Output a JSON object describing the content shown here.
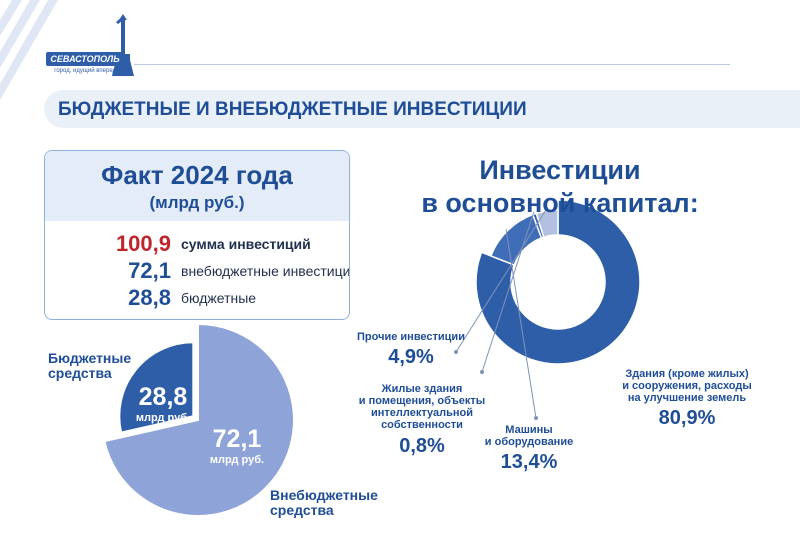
{
  "colors": {
    "primary": "#2f5ea9",
    "dark": "#1f4e96",
    "red": "#c0252c",
    "light_band": "#eaf0f8",
    "slice_light": "#8ea3d8",
    "slice_mid": "#3f6db8",
    "slice_pale": "#b4c0e0"
  },
  "logo": {
    "city": "СЕВАСТОПОЛЬ",
    "slogan": "город, идущий вперед!"
  },
  "header": {
    "title": "БЮДЖЕТНЫЕ И ВНЕБЮДЖЕТНЫЕ ИНВЕСТИЦИИ"
  },
  "fact": {
    "title": "Факт 2024 года",
    "subtitle": "(млрд руб.)",
    "rows": [
      {
        "value": "100,9",
        "label": "сумма инвестиций",
        "color": "#c0252c"
      },
      {
        "value": "72,1",
        "label": "внебюджетные инвестиции",
        "color": "#1f4e96"
      },
      {
        "value": "28,8",
        "label": "бюджетные",
        "color": "#1f4e96"
      }
    ]
  },
  "chart_data": [
    {
      "type": "pie",
      "slices": [
        {
          "label_lines": [
            "Бюджетные",
            "средства"
          ],
          "value": 28.8,
          "value_text": "28,8",
          "unit": "млрд руб.",
          "color": "#2f5ea9"
        },
        {
          "label_lines": [
            "Внебюджетные",
            "средства"
          ],
          "value": 72.1,
          "value_text": "72,1",
          "unit": "млрд руб.",
          "color": "#8ea3d8"
        }
      ]
    },
    {
      "type": "pie",
      "donut": true,
      "title_lines": [
        "Инвестиции",
        "в основной капитал:"
      ],
      "slices": [
        {
          "label_lines": [
            "Здания (кроме жилых)",
            "и сооружения, расходы",
            "на улучшение земель"
          ],
          "value": 80.9,
          "value_text": "80,9%",
          "color": "#2f5ea9"
        },
        {
          "label_lines": [
            "Машины",
            "и оборудование"
          ],
          "value": 13.4,
          "value_text": "13,4%",
          "color": "#3f6db8"
        },
        {
          "label_lines": [
            "Жилые здания",
            "и помещения, объекты",
            "интеллектуальной",
            "собственности"
          ],
          "value": 0.8,
          "value_text": "0,8%",
          "color": "#2f5ea9"
        },
        {
          "label_lines": [
            "Прочие инвестиции"
          ],
          "value": 4.9,
          "value_text": "4,9%",
          "color": "#b4c0e0"
        }
      ]
    }
  ]
}
